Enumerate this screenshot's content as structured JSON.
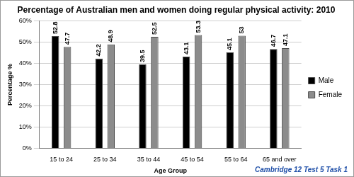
{
  "chart_data": {
    "type": "bar",
    "title": "Percentage of Australian men and women doing regular physical activity: 2010",
    "x_label": "Age Group",
    "y_label": "Percentage %",
    "annotation": "Cambridge 12 Test 5 Task 1",
    "categories": [
      "15 to 24",
      "25 to 34",
      "35 to 44",
      "45 to 54",
      "55 to 64",
      "65 and over"
    ],
    "series": [
      {
        "name": "Male",
        "color": "#000000",
        "values": [
          52.8,
          42.2,
          39.5,
          43.1,
          45.1,
          46.7
        ]
      },
      {
        "name": "Female",
        "color": "#8c8c8c",
        "values": [
          47.7,
          48.9,
          52.5,
          53.3,
          53,
          47.1
        ]
      }
    ],
    "ylim": [
      0,
      60
    ],
    "yticks": [
      {
        "value": 0,
        "label": "0%"
      },
      {
        "value": 10,
        "label": "10%"
      },
      {
        "value": 20,
        "label": "20%"
      },
      {
        "value": 30,
        "label": "30%"
      },
      {
        "value": 40,
        "label": "40%"
      },
      {
        "value": 50,
        "label": "50%"
      },
      {
        "value": 60,
        "label": "60%"
      }
    ],
    "grid": true,
    "legend": "right",
    "data_labels": true
  }
}
